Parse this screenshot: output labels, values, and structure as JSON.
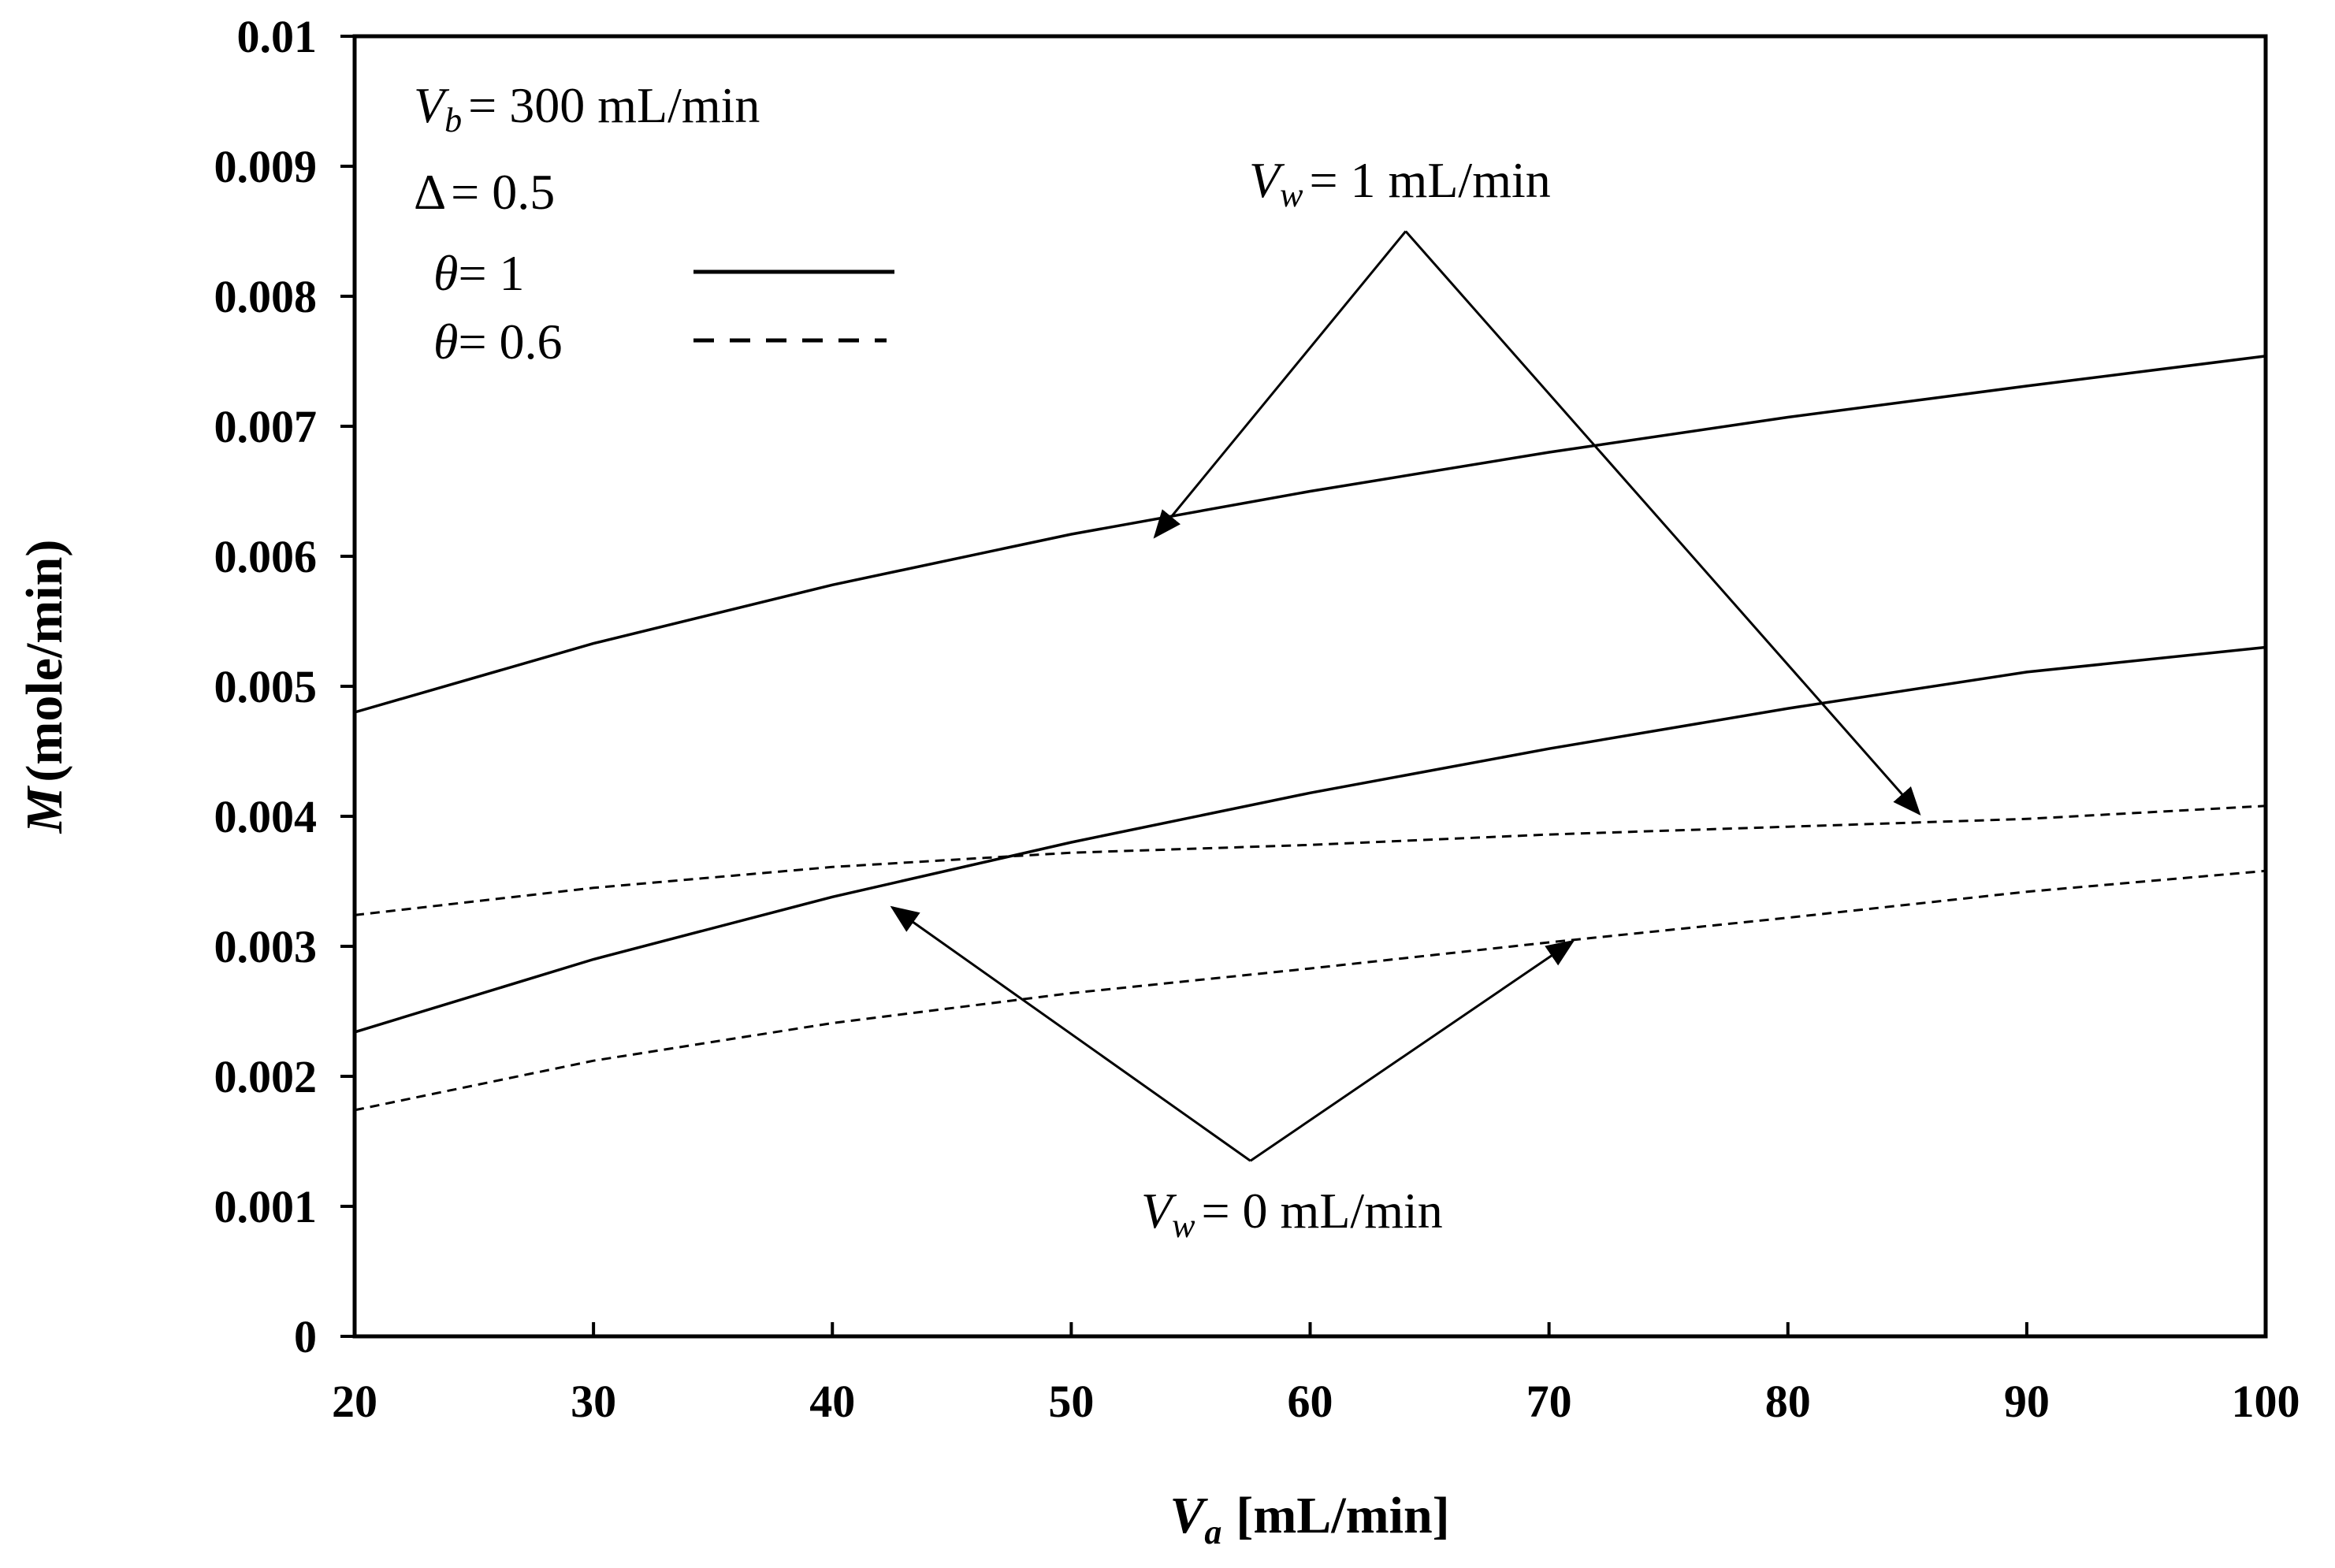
{
  "chart_data": {
    "type": "line",
    "xlabel": {
      "symbol": "V",
      "subscript": "a",
      "unit": "[mL/min]"
    },
    "ylabel": {
      "symbol": "M",
      "unit": "(mole/min)"
    },
    "xlim": [
      20,
      100
    ],
    "ylim": [
      0,
      0.01
    ],
    "x_ticks": [
      "20",
      "30",
      "40",
      "50",
      "60",
      "70",
      "80",
      "90",
      "100"
    ],
    "y_ticks": [
      "0",
      "0.001",
      "0.002",
      "0.003",
      "0.004",
      "0.005",
      "0.006",
      "0.007",
      "0.008",
      "0.009",
      "0.01"
    ],
    "grid": false,
    "params": [
      {
        "symbol": "V",
        "subscript": "b",
        "text": "= 300 mL/min"
      },
      {
        "symbol": "Δ",
        "subscript": "",
        "text": "= 0.5"
      }
    ],
    "legend": [
      {
        "symbol": "θ",
        "text": "= 1",
        "style": "solid"
      },
      {
        "symbol": "θ",
        "text": "= 0.6",
        "style": "dashed"
      }
    ],
    "series": [
      {
        "name": "Vw = 1 mL/min, θ = 1",
        "style": "solid",
        "x": [
          20,
          30,
          40,
          50,
          60,
          70,
          80,
          90,
          100
        ],
        "values": [
          0.0048,
          0.00533,
          0.00578,
          0.00617,
          0.0065,
          0.0068,
          0.00707,
          0.00731,
          0.00754
        ]
      },
      {
        "name": "Vw = 0 mL/min, θ = 1",
        "style": "solid",
        "x": [
          20,
          30,
          40,
          50,
          60,
          70,
          80,
          90,
          100
        ],
        "values": [
          0.00234,
          0.0029,
          0.00338,
          0.0038,
          0.00418,
          0.00452,
          0.00483,
          0.00511,
          0.0053
        ]
      },
      {
        "name": "Vw = 1 mL/min, θ = 0.6",
        "style": "dashed",
        "x": [
          20,
          30,
          40,
          50,
          60,
          70,
          80,
          90,
          100
        ],
        "values": [
          0.00324,
          0.00345,
          0.00361,
          0.00372,
          0.00378,
          0.00386,
          0.00392,
          0.00398,
          0.00408
        ]
      },
      {
        "name": "Vw = 0 mL/min, θ = 0.6",
        "style": "dashed",
        "x": [
          20,
          30,
          40,
          50,
          60,
          70,
          80,
          90,
          100
        ],
        "values": [
          0.00174,
          0.00212,
          0.00241,
          0.00264,
          0.00283,
          0.00303,
          0.00322,
          0.00342,
          0.00358
        ]
      }
    ],
    "annotations": [
      {
        "symbol": "V",
        "subscript": "w",
        "text": "= 1 mL/min",
        "apex": {
          "x": 64,
          "y": 0.0085
        },
        "targets": [
          {
            "x": 53.5,
            "y": 0.00615
          },
          {
            "x": 85.5,
            "y": 0.00402
          }
        ]
      },
      {
        "symbol": "V",
        "subscript": "w",
        "text": "= 0 mL/min",
        "apex": {
          "x": 57.5,
          "y": 0.00135
        },
        "targets": [
          {
            "x": 42.5,
            "y": 0.0033
          },
          {
            "x": 71,
            "y": 0.00304
          }
        ]
      }
    ]
  }
}
